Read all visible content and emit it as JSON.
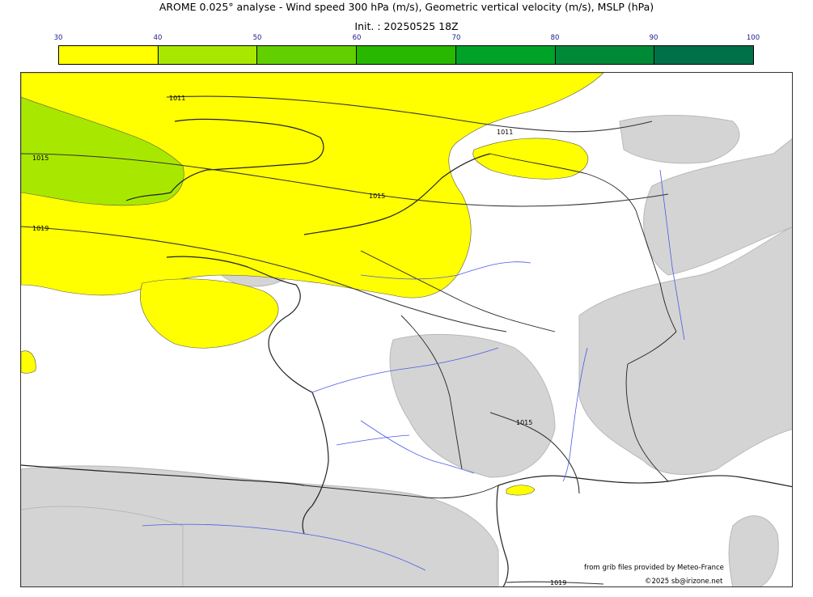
{
  "header": {
    "title": "AROME 0.025° analyse - Wind speed 300 hPa (m/s), Geometric vertical velocity (m/s), MSLP (hPa)",
    "init": "Init. : 20250525 18Z"
  },
  "colorbar": {
    "ticks": [
      "30",
      "40",
      "50",
      "60",
      "70",
      "80",
      "90",
      "100"
    ],
    "colors": [
      "#ffff00",
      "#a8e800",
      "#62d000",
      "#28b800",
      "#00a228",
      "#008a38",
      "#007048"
    ]
  },
  "map": {
    "colors": {
      "yellow": "#ffff00",
      "green": "#a8e800",
      "terrain": "#d4d4d4",
      "terrain_dark": "#b8b8b8",
      "rivers": "#4a5ae8",
      "borders": "#222222"
    },
    "isobars": [
      {
        "label": "1011"
      },
      {
        "label": "1011"
      },
      {
        "label": "1015"
      },
      {
        "label": "1015"
      },
      {
        "label": "1015"
      },
      {
        "label": "1019"
      },
      {
        "label": "1019"
      }
    ]
  },
  "credits": {
    "source": "from grib files provided by Meteo-France",
    "copyright": "©2025 sb@irizone.net"
  }
}
